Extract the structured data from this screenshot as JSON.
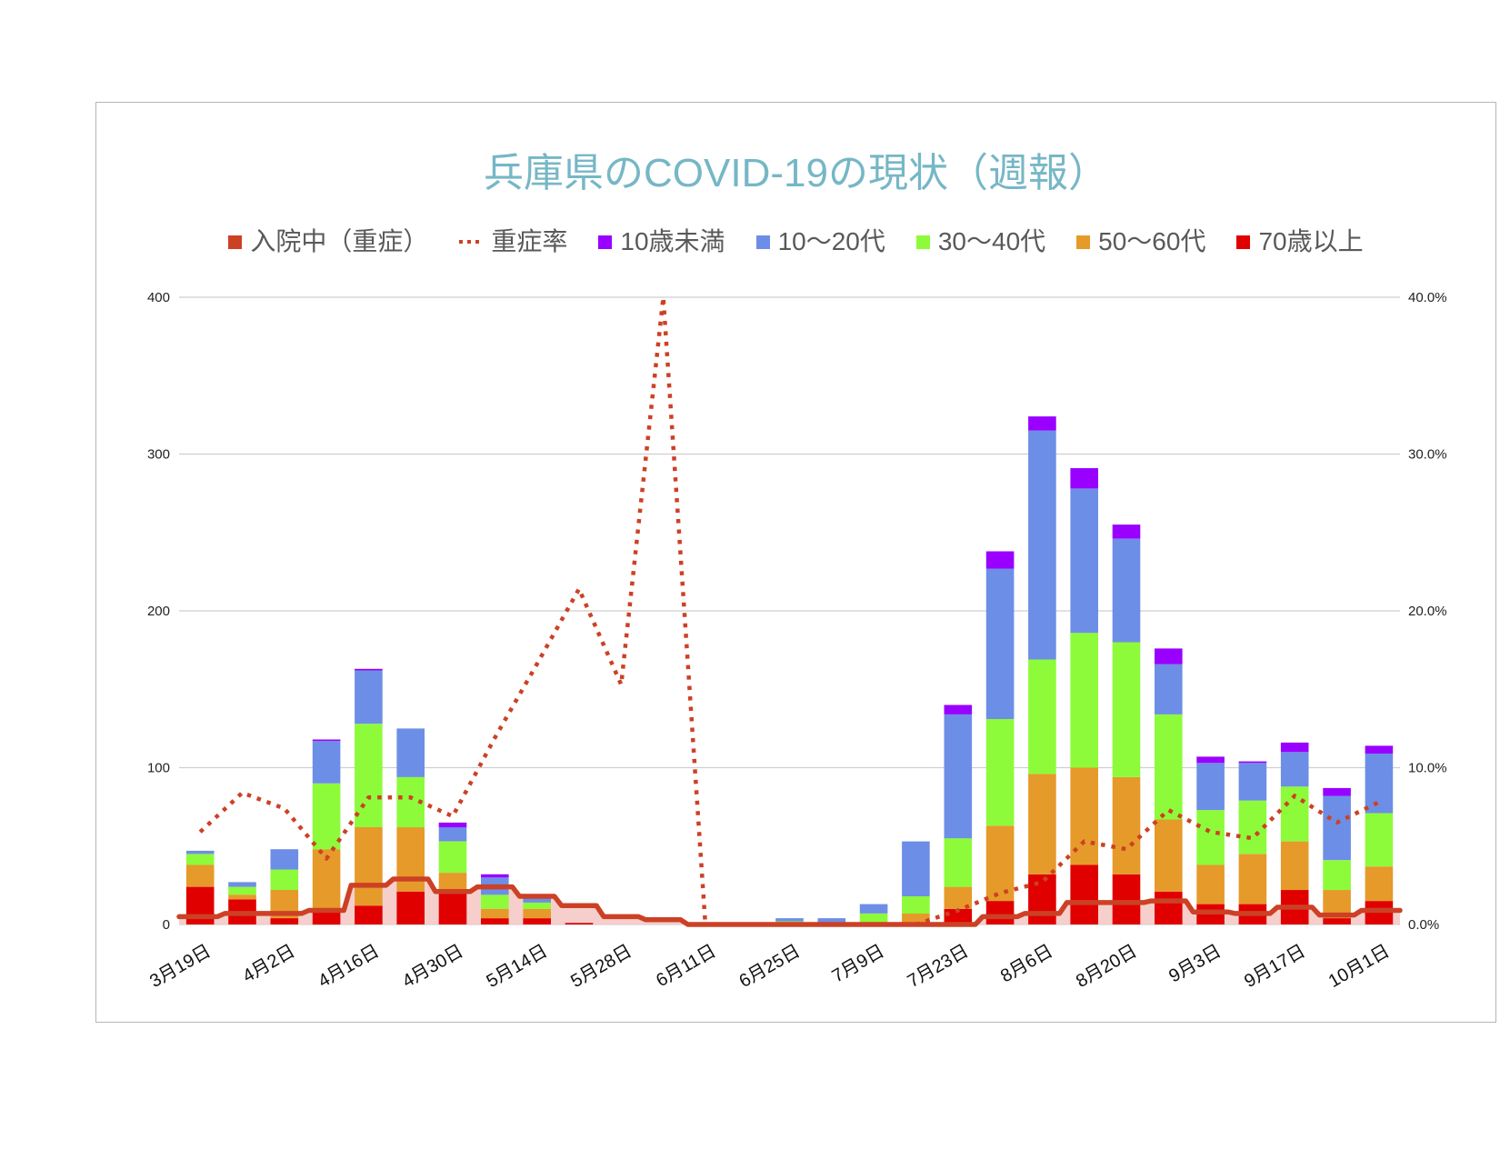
{
  "chart_data": {
    "type": "bar",
    "stacked": true,
    "title": "兵庫県のCOVID-19の現状（週報）",
    "title_color": "#76b7c6",
    "legend": "top",
    "grid": true,
    "categories": [
      "3月19日",
      "",
      "4月2日",
      "",
      "4月16日",
      "",
      "4月30日",
      "",
      "5月14日",
      "",
      "5月28日",
      "",
      "6月11日",
      "",
      "6月25日",
      "",
      "7月9日",
      "",
      "7月23日",
      "",
      "8月6日",
      "",
      "8月20日",
      "",
      "9月3日",
      "",
      "9月17日",
      "",
      "10月1日"
    ],
    "ylim": [
      0,
      400
    ],
    "yticks": [
      "0",
      "100",
      "200",
      "300",
      "400"
    ],
    "y2lim": [
      0,
      40
    ],
    "y2ticks": [
      "0.0%",
      "10.0%",
      "20.0%",
      "30.0%",
      "40.0%"
    ],
    "series": [
      {
        "name": "入院中（重症）",
        "type": "area-step",
        "axis": "left",
        "color": "#cc4125",
        "fill": "#f4c7c3",
        "values": [
          5,
          7,
          7,
          9,
          25,
          29,
          21,
          24,
          18,
          12,
          5,
          3,
          0,
          0,
          0,
          0,
          0,
          0,
          0,
          5,
          7,
          14,
          14,
          15,
          8,
          7,
          11,
          6,
          9
        ]
      },
      {
        "name": "重症率",
        "type": "line-dotted",
        "axis": "right",
        "color": "#cc4125",
        "values": [
          5.9,
          8.4,
          7.4,
          4.2,
          8.1,
          8.1,
          6.9,
          11.9,
          16.6,
          21.4,
          15.3,
          40.0,
          0,
          0,
          0,
          0,
          0,
          0,
          0.9,
          2.0,
          2.7,
          5.3,
          4.8,
          7.3,
          5.9,
          5.5,
          8.2,
          6.5,
          7.8
        ]
      },
      {
        "name": "10歳未満",
        "type": "bar",
        "axis": "left",
        "color": "#9900ff",
        "values": [
          0,
          0,
          0,
          1,
          1,
          0,
          3,
          2,
          0,
          0,
          0,
          0,
          0,
          0,
          0,
          0,
          0,
          0,
          6,
          11,
          9,
          13,
          9,
          10,
          4,
          1,
          6,
          5,
          5
        ]
      },
      {
        "name": "10〜20代",
        "type": "bar",
        "axis": "left",
        "color": "#6d8ee6",
        "values": [
          2,
          3,
          13,
          27,
          34,
          31,
          9,
          11,
          4,
          0,
          0,
          0,
          0,
          0,
          2,
          4,
          6,
          35,
          79,
          96,
          146,
          92,
          66,
          32,
          30,
          24,
          22,
          41,
          38
        ]
      },
      {
        "name": "30〜40代",
        "type": "bar",
        "axis": "left",
        "color": "#8dfb3a",
        "values": [
          7,
          5,
          13,
          42,
          66,
          32,
          20,
          9,
          4,
          0,
          0,
          0,
          0,
          0,
          1,
          0,
          6,
          11,
          31,
          68,
          73,
          86,
          86,
          67,
          35,
          34,
          35,
          19,
          34
        ]
      },
      {
        "name": "50〜60代",
        "type": "bar",
        "axis": "left",
        "color": "#e69a2a",
        "values": [
          14,
          3,
          18,
          38,
          50,
          41,
          13,
          6,
          6,
          0,
          0,
          0,
          0,
          0,
          1,
          0,
          1,
          6,
          14,
          48,
          64,
          62,
          62,
          46,
          25,
          32,
          31,
          18,
          22
        ]
      },
      {
        "name": "70歳以上",
        "type": "bar",
        "axis": "left",
        "color": "#e00000",
        "values": [
          24,
          16,
          4,
          10,
          12,
          21,
          20,
          4,
          4,
          1,
          0,
          0,
          0,
          0,
          0,
          0,
          0,
          1,
          10,
          15,
          32,
          38,
          32,
          21,
          13,
          13,
          22,
          4,
          15
        ]
      }
    ]
  }
}
